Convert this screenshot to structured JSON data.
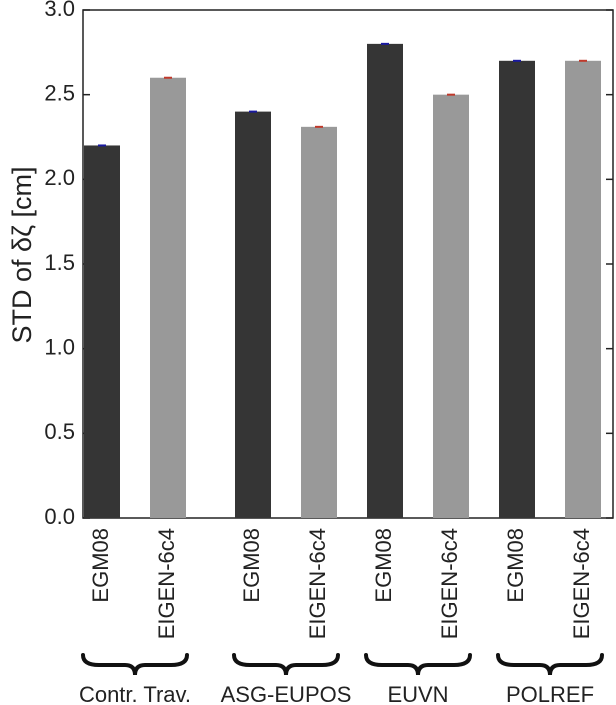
{
  "chart_data": {
    "type": "bar",
    "ylabel": "STD of δζ [cm]",
    "ylim": [
      0.0,
      3.0
    ],
    "yticks": [
      "0.0",
      "0.5",
      "1.0",
      "1.5",
      "2.0",
      "2.5",
      "3.0"
    ],
    "groups": [
      {
        "label": "Contr. Trav.",
        "bars": [
          {
            "name": "EGM08",
            "value": 2.2
          },
          {
            "name": "EIGEN-6c4",
            "value": 2.6
          }
        ]
      },
      {
        "label": "ASG-EUPOS",
        "bars": [
          {
            "name": "EGM08",
            "value": 2.4
          },
          {
            "name": "EIGEN-6c4",
            "value": 2.31
          }
        ]
      },
      {
        "label": "EUVN",
        "bars": [
          {
            "name": "EGM08",
            "value": 2.8
          },
          {
            "name": "EIGEN-6c4",
            "value": 2.5
          }
        ]
      },
      {
        "label": "POLREF",
        "bars": [
          {
            "name": "EGM08",
            "value": 2.7
          },
          {
            "name": "EIGEN-6c4",
            "value": 2.7
          }
        ]
      }
    ],
    "colors": {
      "EGM08": "#353535",
      "EIGEN-6c4": "#999999",
      "marker_EGM08": "#1a1aa0",
      "marker_EIGEN-6c4": "#c0392b"
    },
    "grid": false
  }
}
